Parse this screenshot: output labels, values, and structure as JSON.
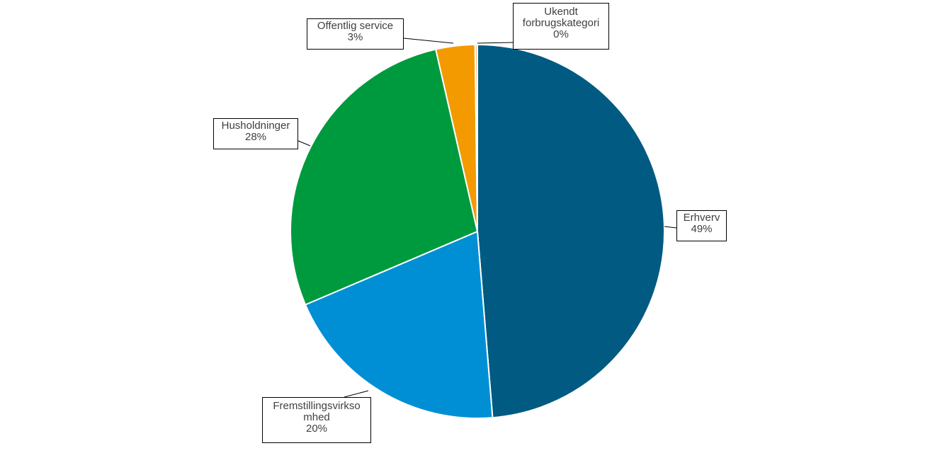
{
  "chart_data": {
    "type": "pie",
    "slices": [
      {
        "name": "Erhverv",
        "value": 49,
        "label_value": "49%",
        "color": "#005a82"
      },
      {
        "name": "Fremstillingsvirksomhed",
        "name_line1": "Fremstillingsvirkso",
        "name_line2": "mhed",
        "value": 20,
        "label_value": "20%",
        "color": "#008fd5"
      },
      {
        "name": "Husholdninger",
        "value": 28,
        "label_value": "28%",
        "color": "#009a3e"
      },
      {
        "name": "Offentlig service",
        "value": 3.4,
        "label_value": "3%",
        "color": "#f29a00"
      },
      {
        "name": "Ukendt forbrugskategori",
        "name_line1": "Ukendt",
        "name_line2": "forbrugskategori",
        "value": 0.2,
        "label_value": "0%",
        "color": "#f6c28a"
      }
    ]
  }
}
